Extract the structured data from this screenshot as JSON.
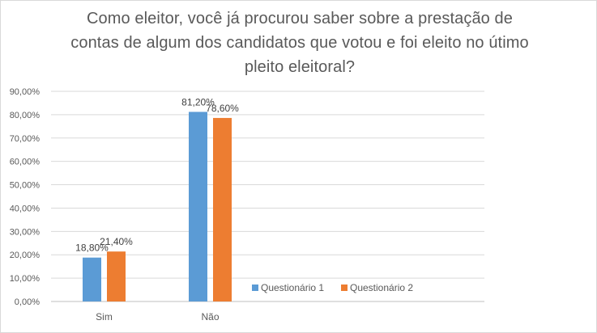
{
  "chart_data": {
    "type": "bar",
    "title_lines": [
      "Como eleitor, você já procurou saber sobre a prestação de",
      "contas de algum dos candidatos que votou e foi eleito no útimo",
      "pleito eleitoral?"
    ],
    "categories": [
      "Sim",
      "Não"
    ],
    "series": [
      {
        "name": "Questionário 1",
        "color": "#5b9bd5",
        "values": [
          18.8,
          81.2
        ],
        "labels": [
          "18,80%",
          "81,20%"
        ]
      },
      {
        "name": "Questionário 2",
        "color": "#ed7d31",
        "values": [
          21.4,
          78.6
        ],
        "labels": [
          "21,40%",
          "78,60%"
        ]
      }
    ],
    "y_ticks": [
      {
        "value": 0,
        "label": "0,00%"
      },
      {
        "value": 10,
        "label": "10,00%"
      },
      {
        "value": 20,
        "label": "20,00%"
      },
      {
        "value": 30,
        "label": "30,00%"
      },
      {
        "value": 40,
        "label": "40,00%"
      },
      {
        "value": 50,
        "label": "50,00%"
      },
      {
        "value": 60,
        "label": "60,00%"
      },
      {
        "value": 70,
        "label": "70,00%"
      },
      {
        "value": 80,
        "label": "80,00%"
      },
      {
        "value": 90,
        "label": "90,00%"
      }
    ],
    "ylim": [
      0,
      90
    ],
    "grid": true,
    "legend_position": "bottom-right"
  }
}
